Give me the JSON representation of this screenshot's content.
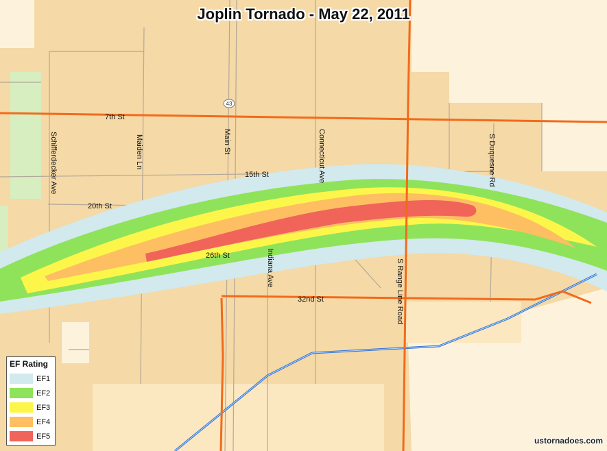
{
  "title": "Joplin Tornado - May 22, 2011",
  "credit": "ustornadoes.com",
  "legend": {
    "title": "EF Rating",
    "items": [
      {
        "label": "EF1",
        "color": "#d2e9ee"
      },
      {
        "label": "EF2",
        "color": "#8fe35a"
      },
      {
        "label": "EF3",
        "color": "#fdf64a"
      },
      {
        "label": "EF4",
        "color": "#fdbf62"
      },
      {
        "label": "EF5",
        "color": "#f0645a"
      }
    ]
  },
  "streets": {
    "seventh": "7th St",
    "fifteenth": "15th St",
    "twentieth": "20th St",
    "twentysixth": "26th St",
    "thirtysecond": "32nd St",
    "schifferdecker": "Schifferdecker Ave",
    "maiden": "Maiden Ln",
    "main": "Main St",
    "connecticut": "Connecticut Ave",
    "indiana": "Indiana Ave",
    "range_line": "S Range Line Road",
    "duquesne": "S Duquesne Rd"
  },
  "route_shield": "43",
  "colors": {
    "urban": "#f5d9a6",
    "urban_light": "#fbe7c0",
    "rural": "#fdf3dc",
    "park": "#d6eec0",
    "major_road": "#f26a1b",
    "minor_road": "#b4a89a",
    "railroad": "#2d74d8"
  }
}
